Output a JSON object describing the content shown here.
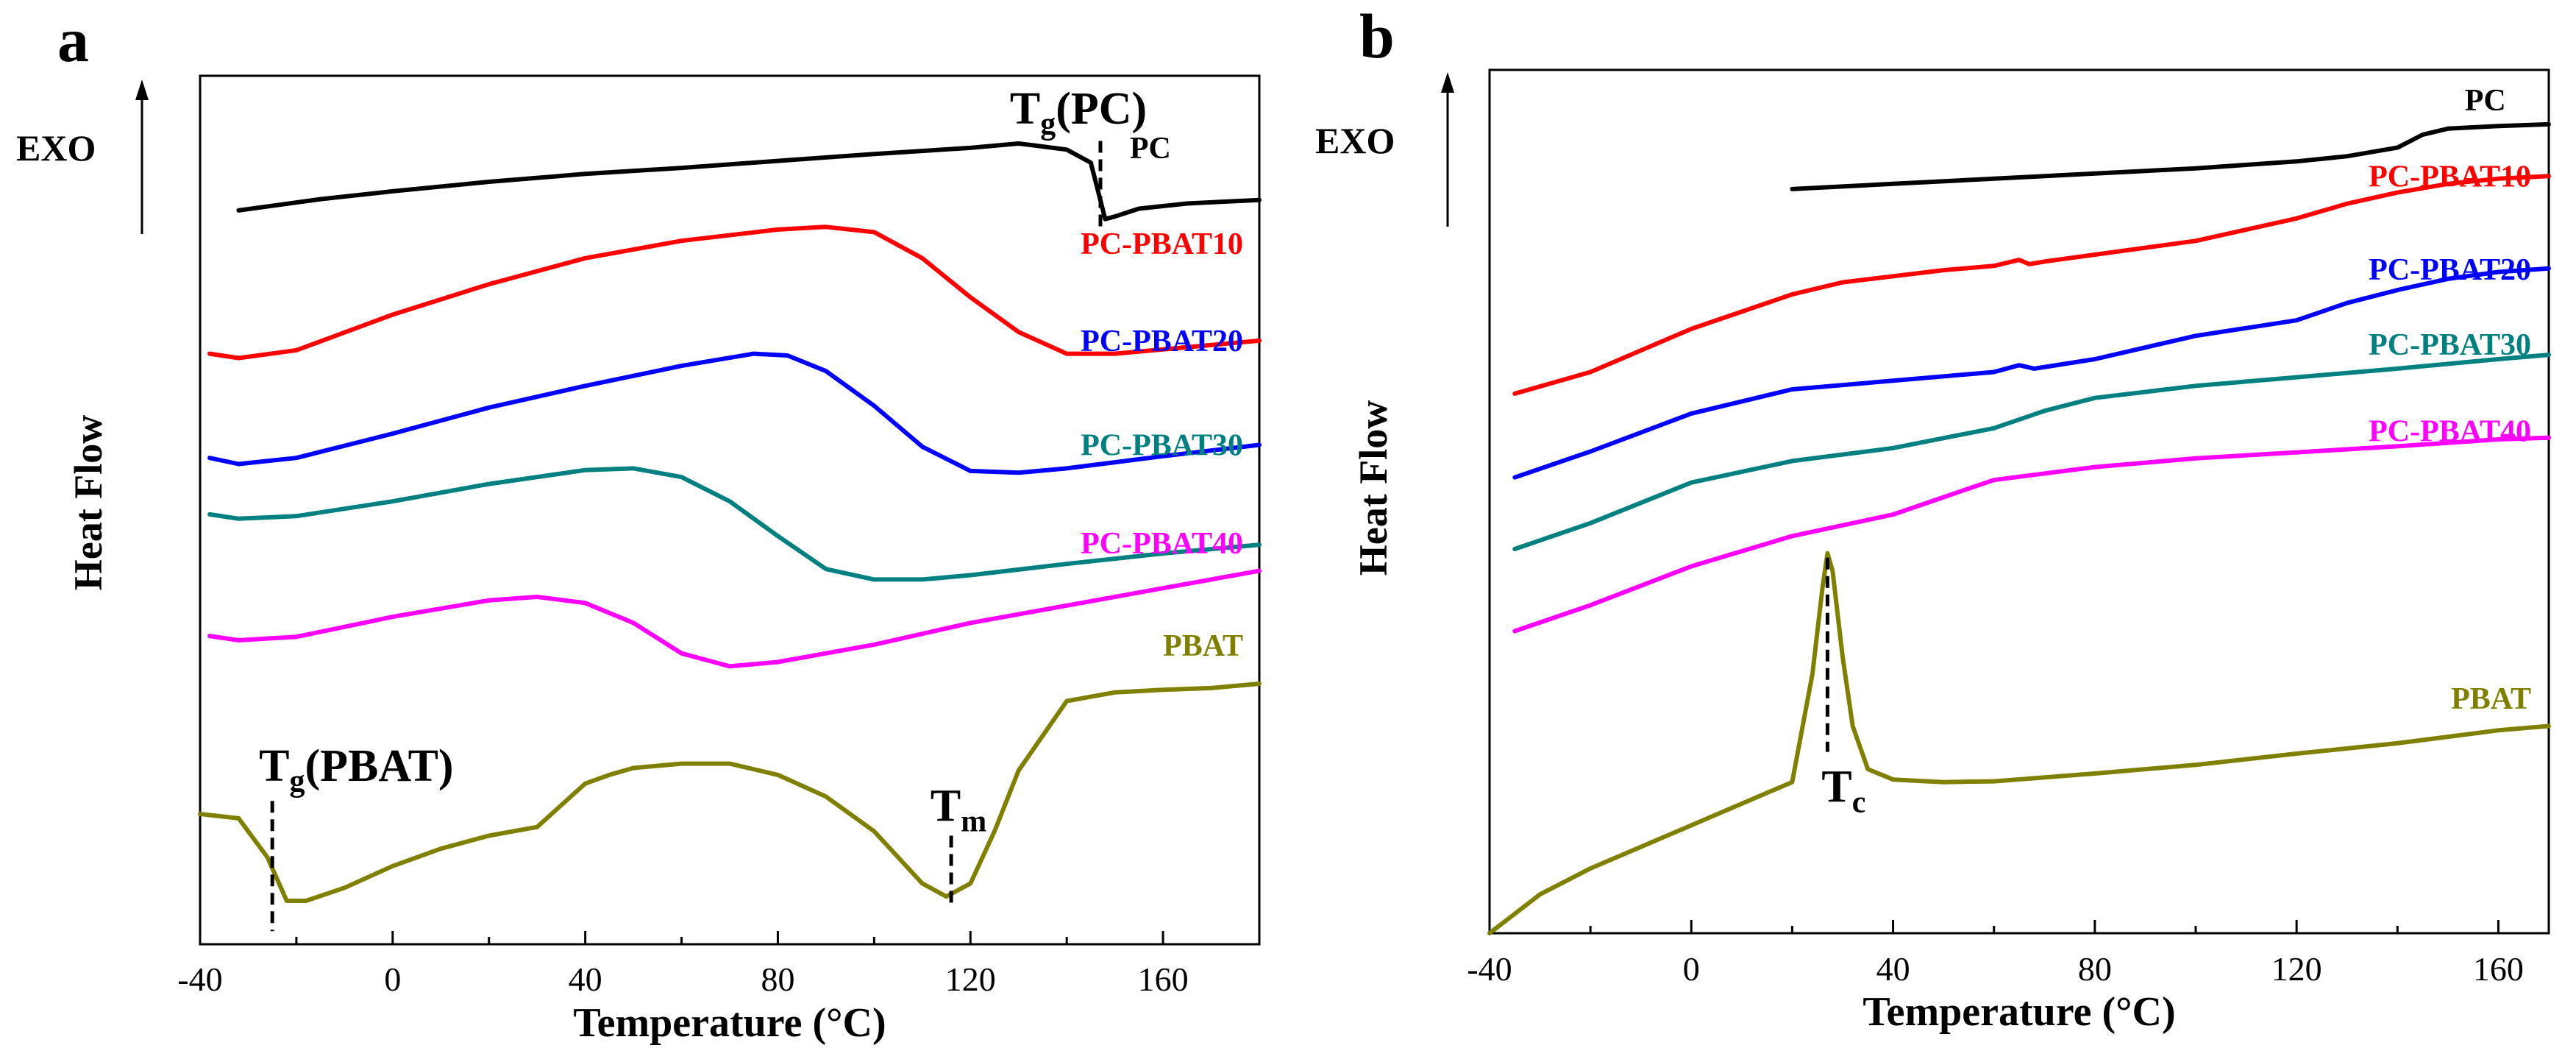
{
  "chart_data": [
    {
      "type": "line",
      "panel_label": "a",
      "xlabel": "Temperature (°C)",
      "ylabel": "Heat Flow",
      "exo_label": "EXO",
      "xlim": [
        -40,
        180
      ],
      "ylim": [
        0,
        100
      ],
      "xticks": [
        -40,
        0,
        40,
        80,
        120,
        160
      ],
      "tick_labels": [
        "-40",
        "0",
        "40",
        "80",
        "120",
        "160"
      ],
      "series": [
        {
          "name": "PC",
          "color": "#000000",
          "label_at": [
            165,
            90.5
          ],
          "x": [
            -32,
            -15,
            0,
            20,
            40,
            60,
            80,
            100,
            120,
            130,
            133,
            140,
            145,
            148,
            150,
            155,
            165,
            180
          ],
          "y": [
            84.5,
            85.8,
            86.7,
            87.8,
            88.7,
            89.4,
            90.2,
            91.0,
            91.7,
            92.2,
            92.0,
            91.5,
            90.0,
            83.5,
            83.8,
            84.7,
            85.3,
            85.7
          ]
        },
        {
          "name": "PC-PBAT10",
          "color": "#ff0000",
          "label_at": [
            180,
            79.5
          ],
          "x": [
            -38,
            -32,
            -20,
            0,
            20,
            40,
            60,
            80,
            90,
            100,
            110,
            120,
            130,
            140,
            150,
            160,
            180
          ],
          "y": [
            68.0,
            67.5,
            68.4,
            72.5,
            76.0,
            79.0,
            81.0,
            82.3,
            82.6,
            82.0,
            79.0,
            74.5,
            70.5,
            68.0,
            68.0,
            68.5,
            69.5
          ]
        },
        {
          "name": "PC-PBAT20",
          "color": "#0000ff",
          "label_at": [
            180,
            68.3
          ],
          "x": [
            -38,
            -32,
            -20,
            0,
            20,
            40,
            60,
            75,
            82,
            90,
            100,
            110,
            120,
            130,
            140,
            160,
            180
          ],
          "y": [
            56.0,
            55.3,
            56.0,
            58.8,
            61.8,
            64.3,
            66.6,
            68.0,
            67.8,
            66.0,
            62.0,
            57.3,
            54.5,
            54.3,
            54.8,
            56.2,
            57.5
          ]
        },
        {
          "name": "PC-PBAT30",
          "color": "#008080",
          "label_at": [
            180,
            56.3
          ],
          "x": [
            -38,
            -32,
            -20,
            0,
            20,
            40,
            50,
            60,
            70,
            80,
            90,
            100,
            110,
            120,
            140,
            160,
            180
          ],
          "y": [
            49.5,
            49.0,
            49.3,
            51.0,
            53.0,
            54.6,
            54.8,
            53.8,
            51.0,
            47.0,
            43.2,
            42.0,
            42.0,
            42.5,
            43.8,
            45.0,
            46.0
          ]
        },
        {
          "name": "PC-PBAT40",
          "color": "#ff00ff",
          "label_at": [
            180,
            45.0
          ],
          "x": [
            -38,
            -32,
            -20,
            0,
            20,
            30,
            40,
            50,
            60,
            70,
            80,
            100,
            120,
            140,
            160,
            180
          ],
          "y": [
            35.5,
            35.0,
            35.4,
            37.7,
            39.6,
            40.0,
            39.3,
            37.0,
            33.5,
            32.0,
            32.5,
            34.5,
            37.0,
            39.0,
            41.0,
            43.0
          ]
        },
        {
          "name": "PBAT",
          "color": "#808000",
          "label_at": [
            180,
            33.2
          ],
          "x": [
            -40,
            -32,
            -26,
            -22,
            -18,
            -10,
            0,
            10,
            20,
            30,
            40,
            45,
            50,
            60,
            70,
            80,
            90,
            100,
            110,
            115,
            120,
            125,
            130,
            140,
            150,
            160,
            170,
            180
          ],
          "y": [
            15.0,
            14.5,
            10.0,
            5.0,
            5.0,
            6.5,
            9.0,
            11.0,
            12.5,
            13.5,
            18.5,
            19.5,
            20.3,
            20.8,
            20.8,
            19.5,
            17.0,
            13.0,
            7.0,
            5.5,
            7.0,
            13.0,
            20.0,
            28.0,
            29.0,
            29.3,
            29.5,
            30.0
          ]
        }
      ],
      "annotations": [
        {
          "label": "T",
          "subscript": "g",
          "suffix": "(PC)",
          "x": 147
        },
        {
          "label": "T",
          "subscript": "g",
          "suffix": "(PBAT)",
          "x": -25
        },
        {
          "label": "T",
          "subscript": "m",
          "suffix": "",
          "x": 116
        }
      ]
    },
    {
      "type": "line",
      "panel_label": "b",
      "xlabel": "Temperature (°C)",
      "ylabel": "Heat Flow",
      "exo_label": "EXO",
      "xlim": [
        -40,
        170
      ],
      "ylim": [
        0,
        100
      ],
      "xticks": [
        -40,
        0,
        40,
        80,
        120,
        160
      ],
      "tick_labels": [
        "-40",
        "0",
        "40",
        "80",
        "120",
        "160"
      ],
      "series": [
        {
          "name": "PC",
          "color": "#000000",
          "label_at": [
            165,
            95.3
          ],
          "x": [
            20,
            40,
            60,
            80,
            100,
            120,
            130,
            140,
            145,
            150,
            160,
            170
          ],
          "y": [
            86.2,
            86.8,
            87.4,
            88.0,
            88.6,
            89.4,
            90.0,
            91.0,
            92.5,
            93.2,
            93.5,
            93.7
          ]
        },
        {
          "name": "PC-PBAT10",
          "color": "#ff0000",
          "label_at": [
            170,
            86.5
          ],
          "x": [
            -35,
            -20,
            0,
            20,
            30,
            50,
            60,
            65,
            67,
            70,
            80,
            100,
            120,
            130,
            140,
            150,
            160,
            170
          ],
          "y": [
            62.5,
            65.0,
            70.0,
            74.0,
            75.4,
            76.8,
            77.3,
            78.0,
            77.5,
            77.8,
            78.6,
            80.2,
            82.8,
            84.5,
            85.8,
            86.8,
            87.4,
            87.7
          ]
        },
        {
          "name": "PC-PBAT20",
          "color": "#0000ff",
          "label_at": [
            170,
            75.7
          ],
          "x": [
            -35,
            -20,
            0,
            20,
            40,
            60,
            65,
            68,
            80,
            100,
            120,
            130,
            140,
            150,
            160,
            170
          ],
          "y": [
            52.8,
            55.8,
            60.2,
            63.0,
            64.0,
            65.0,
            65.8,
            65.4,
            66.5,
            69.2,
            71.0,
            73.0,
            74.5,
            75.8,
            76.6,
            77.0
          ]
        },
        {
          "name": "PC-PBAT30",
          "color": "#008080",
          "label_at": [
            170,
            67.0
          ],
          "x": [
            -35,
            -20,
            0,
            20,
            40,
            60,
            70,
            80,
            100,
            120,
            140,
            160,
            170
          ],
          "y": [
            44.5,
            47.5,
            52.2,
            54.7,
            56.2,
            58.5,
            60.5,
            62.0,
            63.4,
            64.4,
            65.4,
            66.5,
            67.0
          ]
        },
        {
          "name": "PC-PBAT40",
          "color": "#ff00ff",
          "label_at": [
            170,
            57.0
          ],
          "x": [
            -35,
            -20,
            0,
            20,
            40,
            50,
            60,
            80,
            100,
            120,
            140,
            160,
            170
          ],
          "y": [
            35.0,
            38.0,
            42.5,
            46.0,
            48.5,
            50.5,
            52.5,
            54.0,
            55.0,
            55.7,
            56.4,
            57.2,
            57.4
          ]
        },
        {
          "name": "PBAT",
          "color": "#808000",
          "label_at": [
            170,
            26.0
          ],
          "x": [
            -40,
            -30,
            -20,
            -10,
            0,
            10,
            20,
            24,
            26,
            27,
            28,
            30,
            32,
            35,
            40,
            50,
            60,
            80,
            100,
            120,
            140,
            160,
            170
          ],
          "y": [
            0.0,
            4.5,
            7.5,
            10.0,
            12.5,
            15.0,
            17.5,
            30.0,
            40.0,
            44.0,
            42.0,
            32.0,
            24.0,
            19.0,
            17.8,
            17.5,
            17.6,
            18.5,
            19.5,
            20.8,
            22.0,
            23.5,
            24.0
          ]
        }
      ],
      "annotations": [
        {
          "label": "T",
          "subscript": "c",
          "suffix": "",
          "x": 27
        }
      ]
    }
  ]
}
